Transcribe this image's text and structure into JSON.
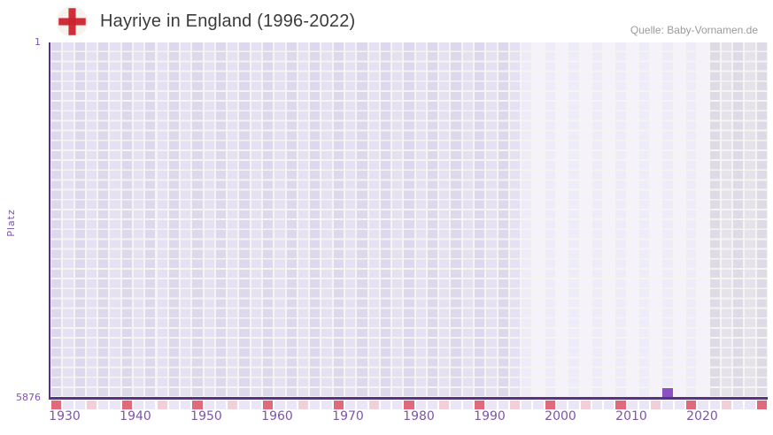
{
  "header": {
    "title": "Hayriye in England (1996-2022)",
    "source": "Quelle: Baby-Vornamen.de",
    "flag_icon": "england-flag"
  },
  "chart_data": {
    "type": "scatter",
    "title": "Hayriye in England (1996-2022)",
    "xlabel": "",
    "ylabel": "Platz",
    "y_axis": {
      "top_tick": "1",
      "bottom_tick": "5876",
      "min": 1,
      "max": 5876,
      "inverted": true
    },
    "x_range": [
      1928,
      2029.2
    ],
    "x_ticks": [
      "1930",
      "1940",
      "1950",
      "1960",
      "1970",
      "1980",
      "1990",
      "2000",
      "2010",
      "2020"
    ],
    "x_tick_years": [
      1930,
      1940,
      1950,
      1960,
      1970,
      1980,
      1990,
      2000,
      2010,
      2020
    ],
    "points": [
      {
        "year": 2015,
        "platz": 5876
      }
    ],
    "data_period_band": {
      "start_year": 1995,
      "end_year": 2021
    },
    "timeline_marks": {
      "major_years": [
        1928,
        1938,
        1948,
        1958,
        1968,
        1978,
        1988,
        1998,
        2008,
        2018,
        2028
      ],
      "minor_years": [
        1933,
        1943,
        1953,
        1963,
        1973,
        1983,
        1993,
        2003,
        2013,
        2023
      ]
    },
    "grid": true,
    "legend": false
  },
  "colors": {
    "axis": "#58308e",
    "tick_label": "#7e55ac",
    "title_text": "#3b3b3b",
    "source_text": "#9b9b9b",
    "marker": "#8b50c2",
    "plot_gap": "#f6f4f2",
    "cell_even": "#ded8ec",
    "cell_odd": "#e6e1f2",
    "band_even": "#efecf9",
    "band_odd": "#f5f2fb",
    "future_even": "#dedbe6",
    "future_odd": "#e5e2ec",
    "strip_base": "#ebe6f5",
    "strip_major": "#e0697c",
    "strip_minor": "#f1d0da",
    "flag_red": "#cf2e38",
    "flag_bg": "#f6f3ef"
  }
}
